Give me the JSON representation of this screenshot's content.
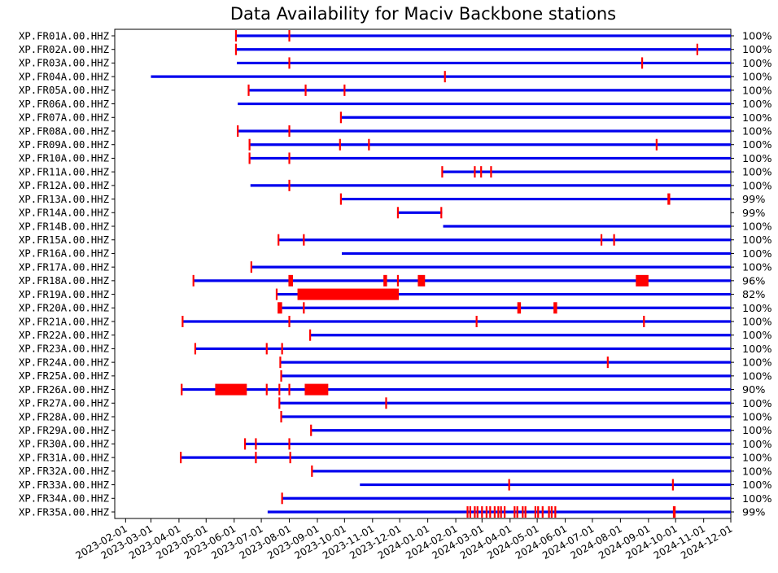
{
  "chart_data": {
    "type": "gantt",
    "title": "Data Availability for Maciv Backbone stations",
    "xlabel": "",
    "ylabel": "",
    "xlim": [
      "2023-01-20",
      "2024-12-01"
    ],
    "x_tick_labels": [
      "2023-02-01",
      "2023-03-01",
      "2023-04-01",
      "2023-05-01",
      "2023-06-01",
      "2023-07-01",
      "2023-08-01",
      "2023-09-01",
      "2023-10-01",
      "2023-11-01",
      "2023-12-01",
      "2024-01-01",
      "2024-02-01",
      "2024-03-01",
      "2024-04-01",
      "2024-05-01",
      "2024-06-01",
      "2024-07-01",
      "2024-08-01",
      "2024-09-01",
      "2024-10-01",
      "2024-11-01",
      "2024-12-01"
    ],
    "end": "2024-12-01",
    "colors": {
      "data": "#0000ee",
      "gap": "#ff0000"
    },
    "series": [
      {
        "station": "XP.FR01A.00.HHZ",
        "start": "2023-06-03",
        "pct": "100%",
        "gaps": [
          [
            "2023-06-03",
            "2023-06-03"
          ],
          [
            "2023-08-01",
            "2023-08-01"
          ]
        ]
      },
      {
        "station": "XP.FR02A.00.HHZ",
        "start": "2023-06-03",
        "pct": "100%",
        "gaps": [
          [
            "2023-06-03",
            "2023-06-03"
          ],
          [
            "2024-10-25",
            "2024-10-26"
          ]
        ]
      },
      {
        "station": "XP.FR03A.00.HHZ",
        "start": "2023-06-04",
        "pct": "100%",
        "gaps": [
          [
            "2023-08-01",
            "2023-08-01"
          ],
          [
            "2024-08-25",
            "2024-08-25"
          ]
        ]
      },
      {
        "station": "XP.FR04A.00.HHZ",
        "start": "2023-03-01",
        "pct": "100%",
        "gaps": [
          [
            "2024-01-20",
            "2024-01-20"
          ]
        ]
      },
      {
        "station": "XP.FR05A.00.HHZ",
        "start": "2023-06-17",
        "pct": "100%",
        "gaps": [
          [
            "2023-06-17",
            "2023-06-17"
          ],
          [
            "2023-08-19",
            "2023-08-19"
          ],
          [
            "2023-10-01",
            "2023-10-01"
          ]
        ]
      },
      {
        "station": "XP.FR06A.00.HHZ",
        "start": "2023-06-05",
        "pct": "100%",
        "gaps": []
      },
      {
        "station": "XP.FR07A.00.HHZ",
        "start": "2023-09-27",
        "pct": "100%",
        "gaps": [
          [
            "2023-09-27",
            "2023-09-27"
          ]
        ]
      },
      {
        "station": "XP.FR08A.00.HHZ",
        "start": "2023-06-05",
        "pct": "100%",
        "gaps": [
          [
            "2023-06-05",
            "2023-06-05"
          ],
          [
            "2023-08-01",
            "2023-08-01"
          ]
        ]
      },
      {
        "station": "XP.FR09A.00.HHZ",
        "start": "2023-06-18",
        "pct": "100%",
        "gaps": [
          [
            "2023-06-18",
            "2023-06-18"
          ],
          [
            "2023-09-26",
            "2023-09-26"
          ],
          [
            "2023-10-28",
            "2023-10-28"
          ],
          [
            "2024-09-10",
            "2024-09-10"
          ]
        ]
      },
      {
        "station": "XP.FR10A.00.HHZ",
        "start": "2023-06-18",
        "pct": "100%",
        "gaps": [
          [
            "2023-06-18",
            "2023-06-18"
          ],
          [
            "2023-08-01",
            "2023-08-01"
          ]
        ]
      },
      {
        "station": "XP.FR11A.00.HHZ",
        "start": "2024-01-17",
        "pct": "100%",
        "gaps": [
          [
            "2024-01-17",
            "2024-01-17"
          ],
          [
            "2024-02-22",
            "2024-02-22"
          ],
          [
            "2024-02-29",
            "2024-02-29"
          ],
          [
            "2024-03-11",
            "2024-03-11"
          ]
        ]
      },
      {
        "station": "XP.FR12A.00.HHZ",
        "start": "2023-06-19",
        "pct": "100%",
        "gaps": [
          [
            "2023-08-01",
            "2023-08-01"
          ]
        ]
      },
      {
        "station": "XP.FR13A.00.HHZ",
        "start": "2023-09-27",
        "pct": "99%",
        "gaps": [
          [
            "2023-09-27",
            "2023-09-27"
          ],
          [
            "2024-09-23",
            "2024-09-26"
          ]
        ]
      },
      {
        "station": "XP.FR14A.00.HHZ",
        "start": "2023-11-29",
        "end": "2024-01-17",
        "pct": "99%",
        "gaps": [
          [
            "2023-11-29",
            "2023-11-29"
          ],
          [
            "2024-01-16",
            "2024-01-17"
          ]
        ]
      },
      {
        "station": "XP.FR14B.00.HHZ",
        "start": "2024-01-18",
        "pct": "100%",
        "gaps": []
      },
      {
        "station": "XP.FR15A.00.HHZ",
        "start": "2023-07-20",
        "pct": "100%",
        "gaps": [
          [
            "2023-07-20",
            "2023-07-20"
          ],
          [
            "2023-08-17",
            "2023-08-17"
          ],
          [
            "2024-07-11",
            "2024-07-11"
          ],
          [
            "2024-07-25",
            "2024-07-25"
          ]
        ]
      },
      {
        "station": "XP.FR16A.00.HHZ",
        "start": "2023-09-28",
        "pct": "100%",
        "gaps": []
      },
      {
        "station": "XP.FR17A.00.HHZ",
        "start": "2023-06-20",
        "pct": "100%",
        "gaps": [
          [
            "2023-06-20",
            "2023-06-20"
          ]
        ]
      },
      {
        "station": "XP.FR18A.00.HHZ",
        "start": "2023-04-17",
        "pct": "96%",
        "gaps": [
          [
            "2023-04-17",
            "2023-04-17"
          ],
          [
            "2023-08-01",
            "2023-08-06"
          ],
          [
            "2023-11-14",
            "2023-11-18"
          ],
          [
            "2023-11-29",
            "2023-11-29"
          ],
          [
            "2023-12-22",
            "2023-12-30"
          ],
          [
            "2024-08-19",
            "2024-09-02"
          ]
        ]
      },
      {
        "station": "XP.FR19A.00.HHZ",
        "start": "2023-07-18",
        "pct": "82%",
        "gaps": [
          [
            "2023-07-18",
            "2023-07-18"
          ],
          [
            "2023-08-11",
            "2023-12-01"
          ]
        ]
      },
      {
        "station": "XP.FR20A.00.HHZ",
        "start": "2023-07-20",
        "pct": "100%",
        "gaps": [
          [
            "2023-07-20",
            "2023-07-25"
          ],
          [
            "2023-08-17",
            "2023-08-17"
          ],
          [
            "2024-04-10",
            "2024-04-14"
          ],
          [
            "2024-05-20",
            "2024-05-24"
          ]
        ]
      },
      {
        "station": "XP.FR21A.00.HHZ",
        "start": "2023-04-05",
        "pct": "100%",
        "gaps": [
          [
            "2023-04-05",
            "2023-04-05"
          ],
          [
            "2023-08-01",
            "2023-08-01"
          ],
          [
            "2024-02-24",
            "2024-02-24"
          ],
          [
            "2024-08-27",
            "2024-08-28"
          ]
        ]
      },
      {
        "station": "XP.FR22A.00.HHZ",
        "start": "2023-08-24",
        "pct": "100%",
        "gaps": [
          [
            "2023-08-24",
            "2023-08-24"
          ]
        ]
      },
      {
        "station": "XP.FR23A.00.HHZ",
        "start": "2023-04-19",
        "pct": "100%",
        "gaps": [
          [
            "2023-04-19",
            "2023-04-19"
          ],
          [
            "2023-07-07",
            "2023-07-07"
          ],
          [
            "2023-07-24",
            "2023-07-24"
          ]
        ]
      },
      {
        "station": "XP.FR24A.00.HHZ",
        "start": "2023-07-22",
        "pct": "100%",
        "gaps": [
          [
            "2023-07-22",
            "2023-07-22"
          ],
          [
            "2024-07-18",
            "2024-07-18"
          ]
        ]
      },
      {
        "station": "XP.FR25A.00.HHZ",
        "start": "2023-07-23",
        "pct": "100%",
        "gaps": [
          [
            "2023-07-23",
            "2023-07-23"
          ]
        ]
      },
      {
        "station": "XP.FR26A.00.HHZ",
        "start": "2023-04-04",
        "pct": "90%",
        "gaps": [
          [
            "2023-04-04",
            "2023-04-04"
          ],
          [
            "2023-05-12",
            "2023-06-16"
          ],
          [
            "2023-07-07",
            "2023-07-07"
          ],
          [
            "2023-07-21",
            "2023-07-21"
          ],
          [
            "2023-08-01",
            "2023-08-01"
          ],
          [
            "2023-08-19",
            "2023-09-14"
          ]
        ]
      },
      {
        "station": "XP.FR27A.00.HHZ",
        "start": "2023-07-21",
        "pct": "100%",
        "gaps": [
          [
            "2023-07-21",
            "2023-07-21"
          ],
          [
            "2023-11-16",
            "2023-11-16"
          ]
        ]
      },
      {
        "station": "XP.FR28A.00.HHZ",
        "start": "2023-07-23",
        "pct": "100%",
        "gaps": [
          [
            "2023-07-23",
            "2023-07-23"
          ]
        ]
      },
      {
        "station": "XP.FR29A.00.HHZ",
        "start": "2023-08-25",
        "pct": "100%",
        "gaps": [
          [
            "2023-08-25",
            "2023-08-25"
          ]
        ]
      },
      {
        "station": "XP.FR30A.00.HHZ",
        "start": "2023-06-13",
        "pct": "100%",
        "gaps": [
          [
            "2023-06-13",
            "2023-06-13"
          ],
          [
            "2023-06-25",
            "2023-06-25"
          ],
          [
            "2023-08-01",
            "2023-08-01"
          ]
        ]
      },
      {
        "station": "XP.FR31A.00.HHZ",
        "start": "2023-04-03",
        "pct": "100%",
        "gaps": [
          [
            "2023-04-03",
            "2023-04-03"
          ],
          [
            "2023-06-25",
            "2023-06-25"
          ],
          [
            "2023-08-02",
            "2023-08-02"
          ]
        ]
      },
      {
        "station": "XP.FR32A.00.HHZ",
        "start": "2023-08-26",
        "pct": "100%",
        "gaps": [
          [
            "2023-08-26",
            "2023-08-26"
          ]
        ]
      },
      {
        "station": "XP.FR33A.00.HHZ",
        "start": "2023-10-18",
        "pct": "100%",
        "gaps": [
          [
            "2024-03-31",
            "2024-03-31"
          ],
          [
            "2024-09-28",
            "2024-09-28"
          ]
        ]
      },
      {
        "station": "XP.FR34A.00.HHZ",
        "start": "2023-07-24",
        "pct": "100%",
        "gaps": [
          [
            "2023-07-24",
            "2023-07-24"
          ]
        ]
      },
      {
        "station": "XP.FR35A.00.HHZ",
        "start": "2023-07-08",
        "pct": "99%",
        "gaps": [
          [
            "2024-02-14",
            "2024-02-15"
          ],
          [
            "2024-02-17",
            "2024-02-18"
          ],
          [
            "2024-02-22",
            "2024-02-22"
          ],
          [
            "2024-02-25",
            "2024-02-26"
          ],
          [
            "2024-03-01",
            "2024-03-02"
          ],
          [
            "2024-03-06",
            "2024-03-07"
          ],
          [
            "2024-03-10",
            "2024-03-11"
          ],
          [
            "2024-03-15",
            "2024-03-16"
          ],
          [
            "2024-03-19",
            "2024-03-20"
          ],
          [
            "2024-03-22",
            "2024-03-23"
          ],
          [
            "2024-03-26",
            "2024-03-27"
          ],
          [
            "2024-04-06",
            "2024-04-07"
          ],
          [
            "2024-04-09",
            "2024-04-10"
          ],
          [
            "2024-04-15",
            "2024-04-16"
          ],
          [
            "2024-04-18",
            "2024-04-19"
          ],
          [
            "2024-04-29",
            "2024-04-30"
          ],
          [
            "2024-05-02",
            "2024-05-03"
          ],
          [
            "2024-05-07",
            "2024-05-08"
          ],
          [
            "2024-05-14",
            "2024-05-15"
          ],
          [
            "2024-05-17",
            "2024-05-18"
          ],
          [
            "2024-05-21",
            "2024-05-22"
          ],
          [
            "2024-09-29",
            "2024-10-02"
          ]
        ]
      }
    ]
  }
}
